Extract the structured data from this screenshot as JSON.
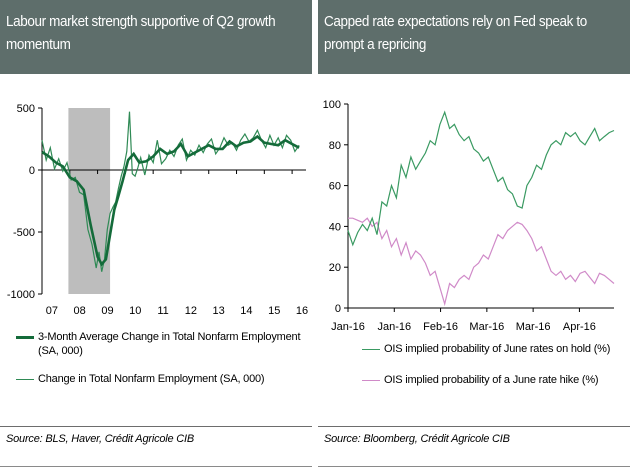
{
  "left_panel": {
    "title": "Labour market strength supportive of Q2 growth momentum",
    "source": "Source: BLS, Haver, Crédit Agricole CIB",
    "legend": [
      {
        "label": "3-Month Average Change in Total Nonfarm Employment (SA, 000)",
        "color": "#1d7a45"
      },
      {
        "label": "Change in Total Nonfarm Employment (SA, 000)",
        "color": "#1d7a45"
      }
    ]
  },
  "right_panel": {
    "title": "Capped rate expectations rely on Fed speak to prompt a repricing",
    "source": "Source: Bloomberg, Crédit Agricole CIB",
    "legend": [
      {
        "label": "OIS implied probability of June rates on hold (%)",
        "color": "#3a9a62"
      },
      {
        "label": "OIS implied probability of a June rate hike (%)",
        "color": "#d08ac8"
      }
    ]
  },
  "chart_data": [
    {
      "type": "line",
      "title": "Labour market strength supportive of Q2 growth momentum",
      "x_tick_labels": [
        "07",
        "08",
        "09",
        "10",
        "11",
        "12",
        "13",
        "14",
        "15",
        "16"
      ],
      "y_tick_labels": [
        "500",
        "0",
        "-500",
        "-1000"
      ],
      "ylim": [
        -1000,
        500
      ],
      "xlim": [
        2007.0,
        2016.5
      ],
      "recession_shading": [
        2007.95,
        2009.45
      ],
      "grid": false,
      "series": [
        {
          "name": "3-Month Average Change in Total Nonfarm Employment (SA, 000)",
          "x": [
            2007.0,
            2007.25,
            2007.5,
            2007.75,
            2008.0,
            2008.25,
            2008.5,
            2008.75,
            2009.0,
            2009.15,
            2009.3,
            2009.45,
            2009.6,
            2009.75,
            2009.9,
            2010.1,
            2010.3,
            2010.5,
            2010.75,
            2011.0,
            2011.25,
            2011.5,
            2011.75,
            2012.0,
            2012.25,
            2012.5,
            2012.75,
            2013.0,
            2013.25,
            2013.5,
            2013.75,
            2014.0,
            2014.25,
            2014.5,
            2014.75,
            2015.0,
            2015.25,
            2015.5,
            2015.75,
            2016.0,
            2016.25
          ],
          "values": [
            145,
            110,
            60,
            30,
            -60,
            -90,
            -160,
            -440,
            -700,
            -760,
            -720,
            -520,
            -320,
            -210,
            -90,
            80,
            130,
            60,
            70,
            110,
            170,
            130,
            150,
            210,
            110,
            140,
            170,
            200,
            170,
            170,
            230,
            190,
            220,
            230,
            270,
            220,
            210,
            200,
            240,
            210,
            180
          ]
        },
        {
          "name": "Change in Total Nonfarm Employment (SA, 000)",
          "x": [
            2007.0,
            2007.15,
            2007.3,
            2007.45,
            2007.6,
            2007.75,
            2007.9,
            2008.05,
            2008.2,
            2008.35,
            2008.5,
            2008.65,
            2008.8,
            2008.95,
            2009.05,
            2009.15,
            2009.25,
            2009.35,
            2009.45,
            2009.55,
            2009.65,
            2009.75,
            2009.85,
            2009.95,
            2010.05,
            2010.15,
            2010.25,
            2010.35,
            2010.45,
            2010.55,
            2010.7,
            2010.85,
            2011.0,
            2011.15,
            2011.3,
            2011.45,
            2011.6,
            2011.75,
            2011.9,
            2012.05,
            2012.2,
            2012.35,
            2012.5,
            2012.65,
            2012.8,
            2012.95,
            2013.1,
            2013.25,
            2013.4,
            2013.55,
            2013.7,
            2013.85,
            2014.0,
            2014.15,
            2014.3,
            2014.45,
            2014.6,
            2014.75,
            2014.9,
            2015.05,
            2015.2,
            2015.35,
            2015.5,
            2015.65,
            2015.8,
            2015.95,
            2016.1,
            2016.25
          ],
          "values": [
            240,
            80,
            180,
            10,
            90,
            -10,
            60,
            -80,
            -60,
            -180,
            -200,
            -480,
            -600,
            -790,
            -660,
            -820,
            -720,
            -480,
            -350,
            -300,
            -260,
            -150,
            -50,
            30,
            150,
            470,
            -30,
            -50,
            20,
            100,
            -40,
            120,
            60,
            240,
            50,
            90,
            160,
            110,
            200,
            250,
            80,
            160,
            120,
            200,
            140,
            210,
            250,
            130,
            180,
            260,
            200,
            220,
            160,
            240,
            290,
            230,
            260,
            320,
            240,
            180,
            280,
            200,
            260,
            180,
            280,
            240,
            150,
            200
          ]
        }
      ]
    },
    {
      "type": "line",
      "title": "Capped rate expectations rely on Fed speak to prompt a repricing",
      "x_tick_labels": [
        "Jan-16",
        "Jan-16",
        "Feb-16",
        "Mar-16",
        "Mar-16",
        "Apr-16"
      ],
      "y_tick_labels": [
        "100",
        "80",
        "60",
        "40",
        "20",
        "0"
      ],
      "ylim": [
        0,
        100
      ],
      "grid": false,
      "series": [
        {
          "name": "OIS implied probability of June rates on hold (%)",
          "x": [
            0,
            2,
            4,
            6,
            8,
            10,
            12,
            14,
            16,
            18,
            20,
            22,
            24,
            26,
            28,
            30,
            32,
            34,
            36,
            38,
            40,
            42,
            44,
            46,
            48,
            50,
            52,
            54,
            56,
            58,
            60,
            62,
            64,
            66,
            68,
            70,
            72,
            74,
            76,
            78,
            80,
            82,
            84,
            86,
            88,
            90,
            92,
            94,
            96,
            98,
            100,
            102,
            104,
            106,
            108,
            110
          ],
          "values": [
            38,
            31,
            37,
            41,
            38,
            44,
            36,
            52,
            50,
            60,
            54,
            70,
            64,
            74,
            68,
            72,
            76,
            82,
            80,
            90,
            96,
            88,
            90,
            85,
            82,
            84,
            78,
            76,
            72,
            74,
            68,
            62,
            64,
            58,
            56,
            50,
            49,
            60,
            64,
            70,
            68,
            75,
            80,
            82,
            80,
            86,
            84,
            86,
            82,
            80,
            84,
            88,
            82,
            84,
            86,
            87
          ]
        },
        {
          "name": "OIS implied probability of a June rate hike (%)",
          "x": [
            0,
            2,
            4,
            6,
            8,
            10,
            12,
            14,
            16,
            18,
            20,
            22,
            24,
            26,
            28,
            30,
            32,
            34,
            36,
            38,
            40,
            42,
            44,
            46,
            48,
            50,
            52,
            54,
            56,
            58,
            60,
            62,
            64,
            66,
            68,
            70,
            72,
            74,
            76,
            78,
            80,
            82,
            84,
            86,
            88,
            90,
            92,
            94,
            96,
            98,
            100,
            102,
            104,
            106,
            108,
            110
          ],
          "values": [
            44,
            44,
            43,
            42,
            44,
            40,
            42,
            34,
            38,
            30,
            34,
            26,
            32,
            24,
            28,
            26,
            22,
            16,
            18,
            10,
            2,
            12,
            10,
            14,
            16,
            14,
            20,
            22,
            26,
            24,
            30,
            36,
            34,
            38,
            40,
            42,
            41,
            38,
            34,
            28,
            30,
            24,
            18,
            16,
            18,
            14,
            16,
            13,
            17,
            18,
            15,
            12,
            17,
            16,
            14,
            12
          ]
        }
      ]
    }
  ]
}
